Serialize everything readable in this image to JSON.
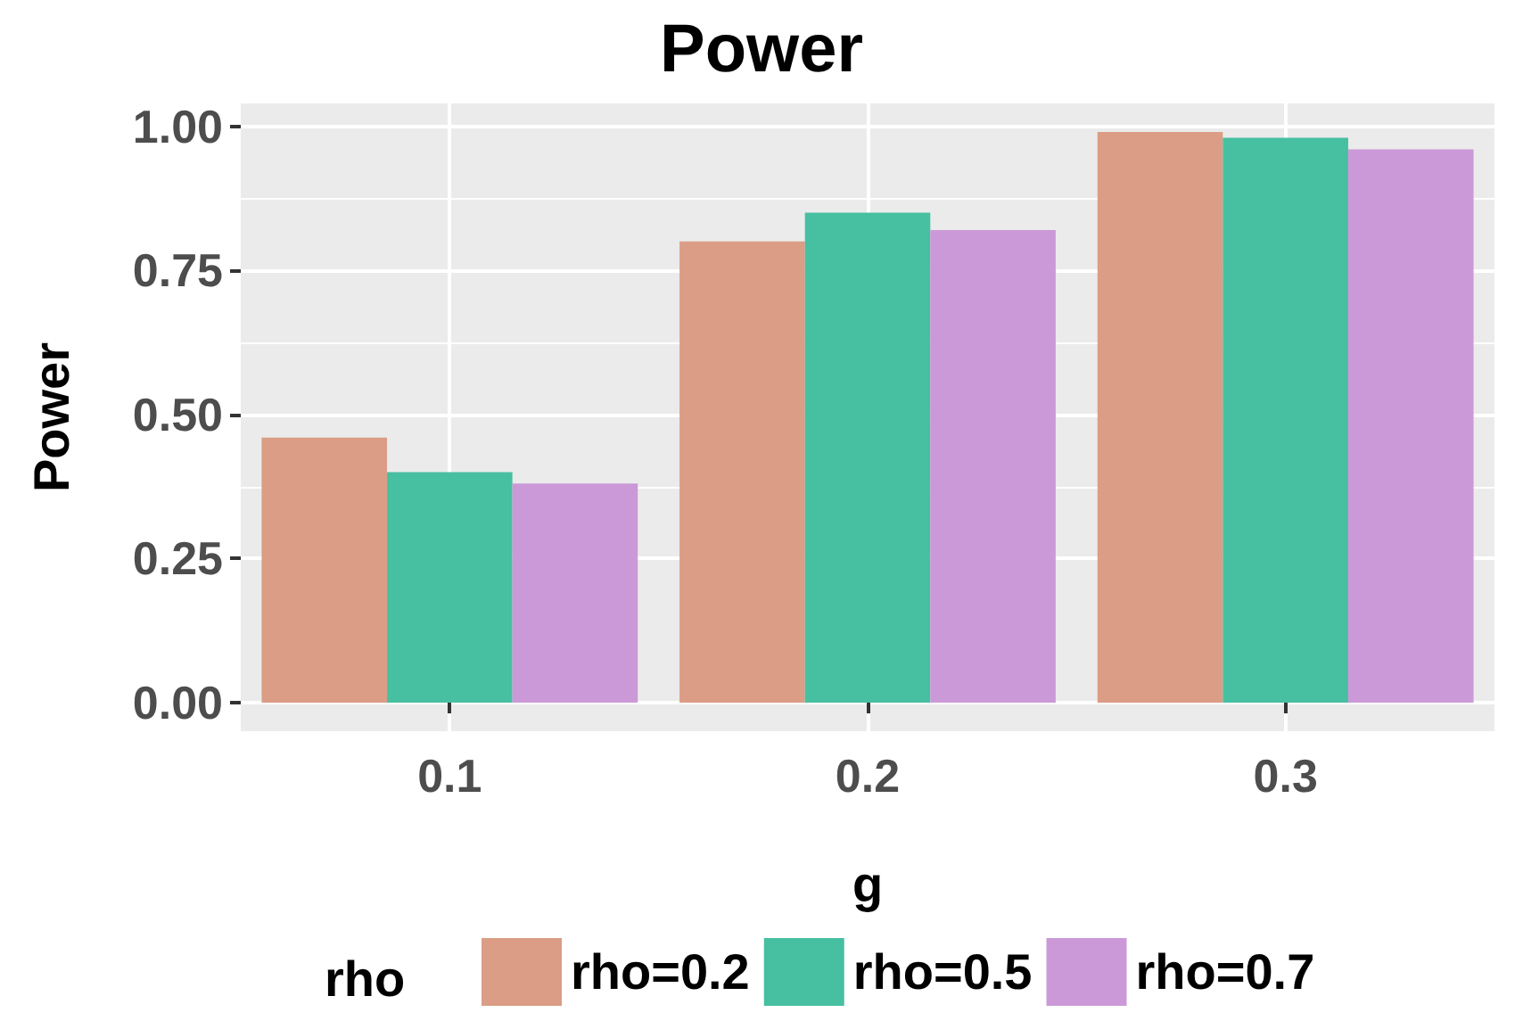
{
  "chart_data": {
    "type": "bar",
    "title": "Power",
    "xlabel": "g",
    "ylabel": "Power",
    "legend_title": "rho",
    "categories": [
      "0.1",
      "0.2",
      "0.3"
    ],
    "series": [
      {
        "name": "rho=0.2",
        "color": "#db9d85",
        "values": [
          0.46,
          0.8,
          0.99
        ]
      },
      {
        "name": "rho=0.5",
        "color": "#47bfa1",
        "values": [
          0.4,
          0.85,
          0.98
        ]
      },
      {
        "name": "rho=0.7",
        "color": "#cc99d8",
        "values": [
          0.38,
          0.82,
          0.96
        ]
      }
    ],
    "ylim": [
      -0.0495,
      1.0395
    ],
    "yticks": [
      {
        "value": 0,
        "label": "0.00"
      },
      {
        "value": 0.25,
        "label": "0.25"
      },
      {
        "value": 0.5,
        "label": "0.50"
      },
      {
        "value": 0.75,
        "label": "0.75"
      },
      {
        "value": 1,
        "label": "1.00"
      }
    ],
    "grid": true,
    "legend": "bottom"
  }
}
